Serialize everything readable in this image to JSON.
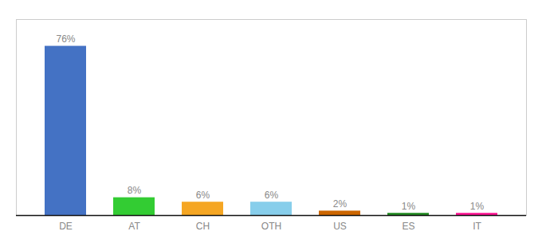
{
  "chart_data": {
    "type": "bar",
    "categories": [
      "DE",
      "AT",
      "CH",
      "OTH",
      "US",
      "ES",
      "IT"
    ],
    "values": [
      76,
      8,
      6,
      6,
      2,
      1,
      1
    ],
    "value_labels": [
      "76%",
      "8%",
      "6%",
      "6%",
      "2%",
      "1%",
      "1%"
    ],
    "colors": [
      "#4472C4",
      "#33CC33",
      "#F5A623",
      "#87CEEB",
      "#CC6600",
      "#228B22",
      "#FF1493"
    ],
    "ylim": [
      0,
      88
    ],
    "data_labels": true,
    "tick_labels": "x",
    "grid": false
  }
}
